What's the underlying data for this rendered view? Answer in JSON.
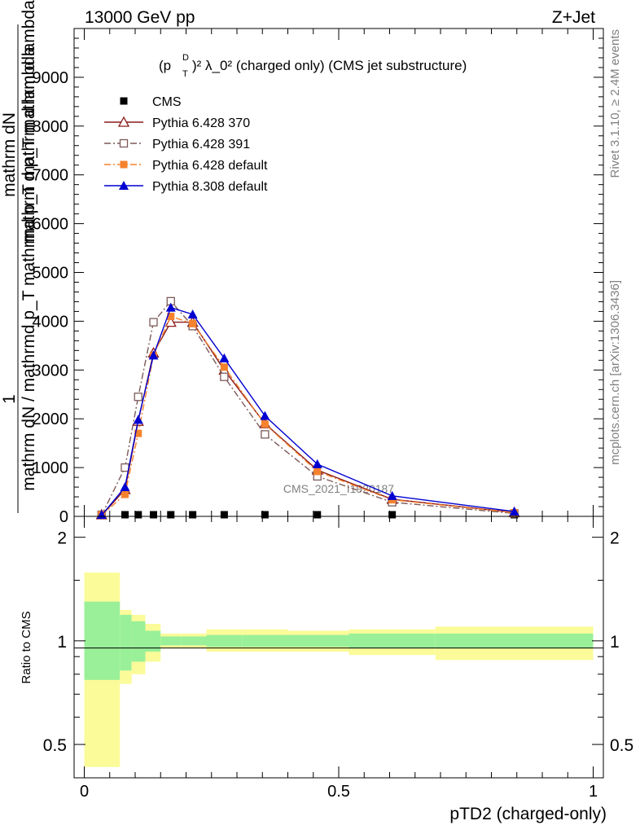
{
  "header": {
    "left": "13000 GeV pp",
    "right": "Z+Jet"
  },
  "plot_title": {
    "main": "(p",
    "sub": "T",
    "sup": "D",
    "rest": ")² λ_0² (charged only) (CMS jet substructure)"
  },
  "side_labels": {
    "rivet": "Rivet 3.1.10, ≥ 2.4M events",
    "mcplots": "mcplots.cern.ch [arXiv:1306.3436]"
  },
  "watermark": "CMS_2021_I1920187",
  "y_axis_label_top": {
    "numerator_1": "1",
    "denominator_1": "mathrm dN / mathrmd p_T mathrmd p_T mathrm d lambda",
    "numerator_2": "mathrm dN",
    "denominator_2": "mathrm d p_T mathrm d lambda"
  },
  "ratio_ylabel": "Ratio to CMS",
  "xlabel": "pTD2 (charged-only)",
  "colors": {
    "data": "#000000",
    "p370": "#8b1a1a",
    "p391": "#7d5a5a",
    "p6def": "#f5822d",
    "p8def": "#0000d0",
    "band_inner": "#99f099",
    "band_outer": "#fbfb99"
  },
  "chart_data": [
    {
      "type": "line",
      "x": [
        0.034,
        0.08,
        0.106,
        0.136,
        0.17,
        0.213,
        0.275,
        0.355,
        0.458,
        0.605,
        0.845
      ],
      "ylim": [
        0,
        10000
      ],
      "yticks": [
        0,
        1000,
        2000,
        3000,
        4000,
        5000,
        6000,
        7000,
        8000,
        9000
      ],
      "ytick_labels": [
        "0",
        "1000",
        "2000",
        "3000",
        "4000",
        "5000",
        "6000",
        "7000",
        "8000",
        "9000"
      ],
      "xlim": [
        -0.02,
        1.02
      ],
      "legend_position": "top-left",
      "series": [
        {
          "name": "CMS",
          "marker": "square-filled",
          "color": "#000000",
          "values": [
            10,
            10,
            10,
            10,
            10,
            10,
            10,
            10,
            10,
            10,
            10
          ]
        },
        {
          "name": "Pythia 6.428 370",
          "marker": "triangle-open",
          "dash": "solid",
          "color": "#8b1a1a",
          "values": [
            20,
            550,
            1950,
            3350,
            3980,
            3980,
            3000,
            1900,
            950,
            350,
            80
          ]
        },
        {
          "name": "Pythia 6.428 391",
          "marker": "square-open",
          "dash": "dashdot",
          "color": "#7d5a5a",
          "values": [
            20,
            1000,
            2450,
            3980,
            4410,
            3900,
            2860,
            1680,
            820,
            290,
            60
          ]
        },
        {
          "name": "Pythia 6.428 default",
          "marker": "square-filled",
          "dash": "dashdot",
          "color": "#f5822d",
          "values": [
            20,
            450,
            1700,
            3300,
            4100,
            3950,
            3060,
            1890,
            920,
            340,
            75
          ]
        },
        {
          "name": "Pythia 8.308 default",
          "marker": "triangle-filled",
          "dash": "solid",
          "color": "#0000d0",
          "values": [
            20,
            600,
            1980,
            3300,
            4280,
            4140,
            3240,
            2060,
            1070,
            420,
            100
          ]
        }
      ]
    },
    {
      "type": "area",
      "title": "",
      "ylabel": "Ratio to CMS",
      "xlabel": "pTD2 (charged-only)",
      "ylim": [
        0.4,
        2.3
      ],
      "log_y": true,
      "yticks": [
        0.5,
        1,
        2
      ],
      "ytick_labels": [
        "0.5",
        "1",
        "2"
      ],
      "xlim": [
        -0.02,
        1.02
      ],
      "xticks": [
        0,
        0.5,
        1
      ],
      "xtick_labels": [
        "0",
        "0.5",
        "1"
      ],
      "bin_edges": [
        0.0,
        0.07,
        0.093,
        0.12,
        0.15,
        0.19,
        0.24,
        0.31,
        0.4,
        0.52,
        0.69,
        1.0
      ],
      "band_inner_low": [
        0.77,
        0.82,
        0.87,
        0.93,
        0.97,
        0.97,
        0.96,
        0.96,
        0.96,
        0.95,
        0.95
      ],
      "band_inner_high": [
        1.3,
        1.19,
        1.14,
        1.07,
        1.03,
        1.03,
        1.04,
        1.04,
        1.04,
        1.05,
        1.05
      ],
      "band_outer_low": [
        0.43,
        0.75,
        0.8,
        0.87,
        0.95,
        0.95,
        0.93,
        0.93,
        0.93,
        0.91,
        0.88
      ],
      "band_outer_high": [
        1.58,
        1.23,
        1.19,
        1.12,
        1.05,
        1.05,
        1.08,
        1.08,
        1.07,
        1.08,
        1.1
      ]
    }
  ]
}
